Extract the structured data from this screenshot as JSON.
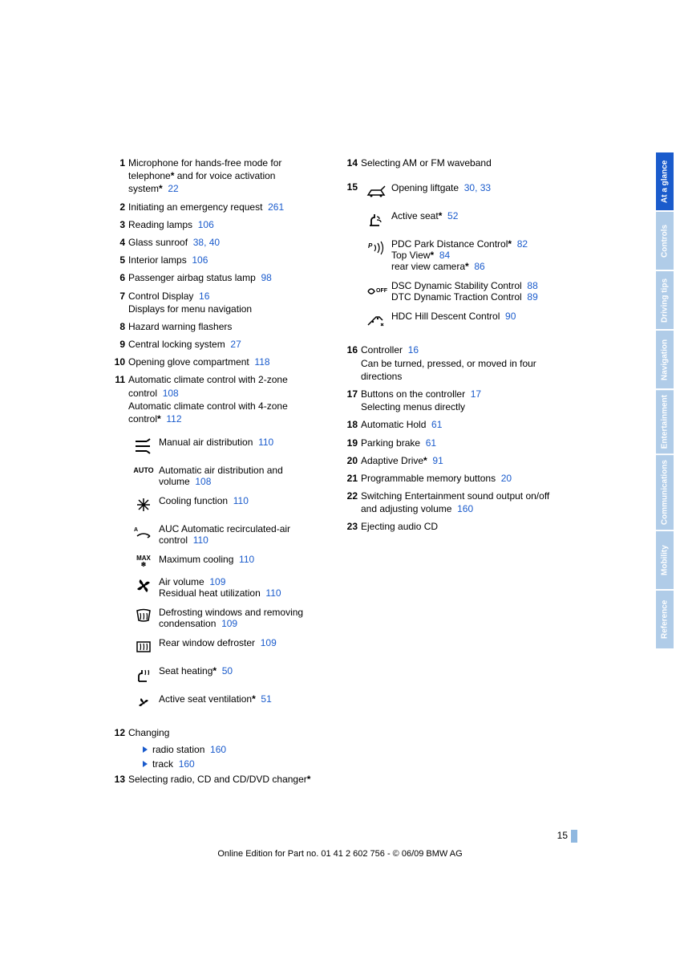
{
  "link_color": "#1a5bcc",
  "tab_active_bg": "#1a5bcc",
  "tab_inactive_bg": "#b0cce8",
  "page_number": "15",
  "footer": "Online Edition for Part no. 01 41 2 602 756 - © 06/09 BMW AG",
  "tabs": [
    {
      "label": "At a glance",
      "active": true
    },
    {
      "label": "Controls",
      "active": false
    },
    {
      "label": "Driving tips",
      "active": false
    },
    {
      "label": "Navigation",
      "active": false
    },
    {
      "label": "Entertainment",
      "active": false
    },
    {
      "label": "Communications",
      "active": false
    },
    {
      "label": "Mobility",
      "active": false
    },
    {
      "label": "Reference",
      "active": false
    }
  ],
  "left": {
    "e1": {
      "n": "1",
      "t1": "Microphone for hands-free mode for telephone",
      "t2": " and for voice activation system",
      "p": "22"
    },
    "e2": {
      "n": "2",
      "t": "Initiating an emergency request",
      "p": "261"
    },
    "e3": {
      "n": "3",
      "t": "Reading lamps",
      "p": "106"
    },
    "e4": {
      "n": "4",
      "t": "Glass sunroof",
      "p": "38, 40"
    },
    "e5": {
      "n": "5",
      "t": "Interior lamps",
      "p": "106"
    },
    "e6": {
      "n": "6",
      "t": "Passenger airbag status lamp",
      "p": "98"
    },
    "e7": {
      "n": "7",
      "t": "Control Display",
      "p": "16",
      "t2": "Displays for menu navigation"
    },
    "e8": {
      "n": "8",
      "t": "Hazard warning flashers"
    },
    "e9": {
      "n": "9",
      "t": "Central locking system",
      "p": "27"
    },
    "e10": {
      "n": "10",
      "t": "Opening glove compartment",
      "p": "118"
    },
    "e11": {
      "n": "11",
      "t": "Automatic climate control with 2-zone control",
      "p": "108",
      "t2": "Automatic climate control with 4-zone control",
      "p2": "112"
    },
    "ic": {
      "manual_air": {
        "t": "Manual air distribution",
        "p": "110"
      },
      "auto": {
        "t": "Automatic air distribution and volume",
        "p": "108",
        "label": "AUTO"
      },
      "cooling": {
        "t": "Cooling function",
        "p": "110"
      },
      "auc": {
        "t": "AUC Automatic recirculated-air control",
        "p": "110"
      },
      "max": {
        "t": "Maximum cooling",
        "p": "110",
        "label1": "MAX"
      },
      "vol": {
        "t": "Air volume",
        "p": "109",
        "t2": "Residual heat utilization",
        "p2": "110"
      },
      "defrost": {
        "t": "Defrosting windows and removing condensation",
        "p": "109"
      },
      "rear_def": {
        "t": "Rear window defroster",
        "p": "109"
      },
      "seat_heat": {
        "t": "Seat heating",
        "p": "50"
      },
      "seat_vent": {
        "t": "Active seat ventilation",
        "p": "51"
      }
    },
    "e12": {
      "n": "12",
      "t": "Changing",
      "r1": "radio station",
      "p1": "160",
      "r2": "track",
      "p2": "160"
    },
    "e13": {
      "n": "13",
      "t": "Selecting radio, CD and CD/DVD changer"
    }
  },
  "right": {
    "e14": {
      "n": "14",
      "t": "Selecting AM or FM waveband"
    },
    "e15": {
      "n": "15"
    },
    "ic": {
      "liftgate": {
        "t": "Opening liftgate",
        "p": "30, 33"
      },
      "active_seat": {
        "t": "Active seat",
        "p": "52"
      },
      "pdc": {
        "t1": "PDC Park Distance Control",
        "p1": "82",
        "t2": "Top View",
        "p2": "84",
        "t3": "rear view camera",
        "p3": "86"
      },
      "dsc": {
        "t1": "DSC Dynamic Stability Control",
        "p1": "88",
        "t2": "DTC Dynamic Traction Control",
        "p2": "89",
        "label": "OFF"
      },
      "hdc": {
        "t": "HDC Hill Descent Control",
        "p": "90"
      }
    },
    "e16": {
      "n": "16",
      "t": "Controller",
      "p": "16",
      "t2": "Can be turned, pressed, or moved in four directions"
    },
    "e17": {
      "n": "17",
      "t": "Buttons on the controller",
      "p": "17",
      "t2": "Selecting menus directly"
    },
    "e18": {
      "n": "18",
      "t": "Automatic Hold",
      "p": "61"
    },
    "e19": {
      "n": "19",
      "t": "Parking brake",
      "p": "61"
    },
    "e20": {
      "n": "20",
      "t": "Adaptive Drive",
      "p": "91"
    },
    "e21": {
      "n": "21",
      "t": "Programmable memory buttons",
      "p": "20"
    },
    "e22": {
      "n": "22",
      "t": "Switching Entertainment sound output on/off and adjusting volume",
      "p": "160"
    },
    "e23": {
      "n": "23",
      "t": "Ejecting audio CD"
    }
  }
}
